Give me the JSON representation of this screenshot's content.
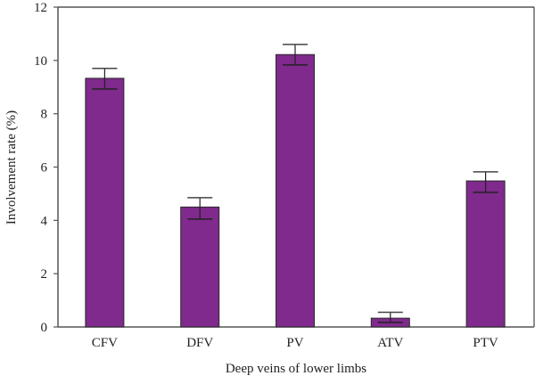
{
  "chart_data": {
    "type": "bar",
    "title": "",
    "xlabel": "Deep veins of lower limbs",
    "ylabel": "Involvement rate (%)",
    "categories": [
      "CFV",
      "DFV",
      "PV",
      "ATV",
      "PTV"
    ],
    "values": [
      9.33,
      4.5,
      10.22,
      0.33,
      5.48
    ],
    "error_upper": [
      9.7,
      4.85,
      10.6,
      0.55,
      5.82
    ],
    "error_lower": [
      8.93,
      4.05,
      9.83,
      0.17,
      5.05
    ],
    "ylim": [
      0,
      12
    ],
    "yticks": [
      0,
      2,
      4,
      6,
      8,
      10,
      12
    ],
    "grid": false,
    "legend": "none",
    "bar_color": "#7f2a8c",
    "bar_edge_color": "#2a2a2a",
    "axis_color": "#555555"
  }
}
